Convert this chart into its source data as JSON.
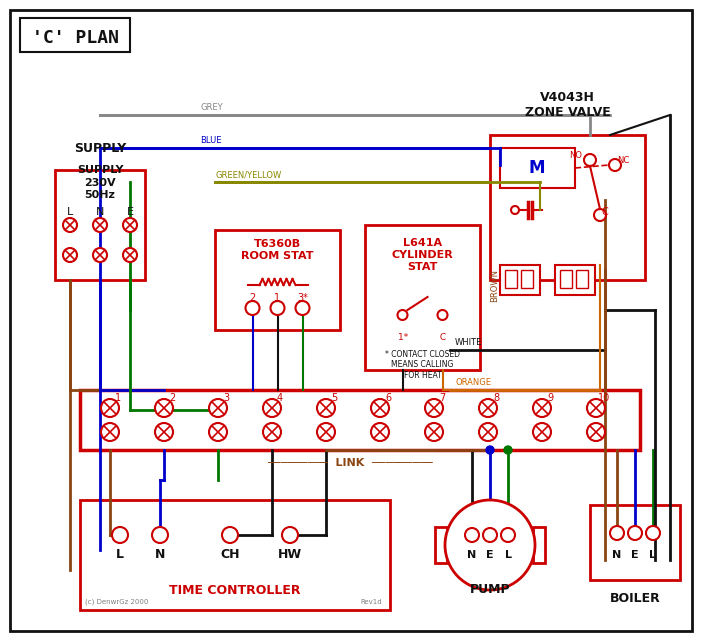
{
  "bg_color": "#f0f0f0",
  "border_color": "#333333",
  "red": "#cc0000",
  "blue": "#0000cc",
  "green": "#007700",
  "brown": "#8B4513",
  "grey": "#888888",
  "orange": "#cc6600",
  "black": "#111111",
  "green_yellow": "#888800",
  "title": "'C' PLAN",
  "supply_text": "SUPPLY\n230V\n50Hz",
  "zone_valve_title": "V4043H\nZONE VALVE",
  "room_stat_title": "T6360B\nROOM STAT",
  "cyl_stat_title": "L641A\nCYLINDER\nSTAT",
  "time_controller_label": "TIME CONTROLLER",
  "pump_label": "PUMP",
  "boiler_label": "BOILER"
}
